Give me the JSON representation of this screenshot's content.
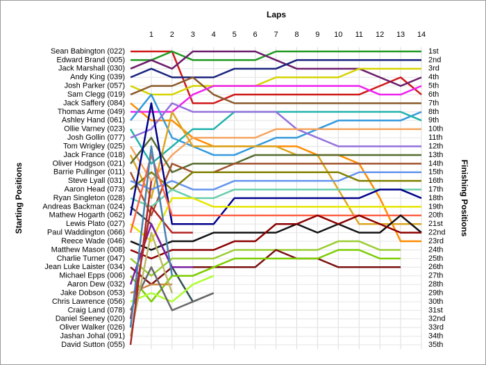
{
  "chart_data": {
    "type": "line",
    "xlabel": "Laps",
    "ylabel": "Starting Positions",
    "y2label": "Finishing Positions",
    "x": [
      0,
      1,
      2,
      3,
      4,
      5,
      6,
      7,
      8,
      9,
      10,
      11,
      12,
      13,
      14
    ],
    "xlim": [
      0,
      14
    ],
    "xticks": [
      1,
      2,
      3,
      4,
      5,
      6,
      7,
      8,
      9,
      10,
      11,
      12,
      13,
      14
    ],
    "ylim": [
      1,
      35
    ],
    "inverted": true,
    "grid": true,
    "y2ticks": [
      {
        "value": 1,
        "label": "1st"
      },
      {
        "value": 2,
        "label": "2nd"
      },
      {
        "value": 3,
        "label": "3rd"
      },
      {
        "value": 4,
        "label": "4th"
      },
      {
        "value": 5,
        "label": "5th"
      },
      {
        "value": 6,
        "label": "6th"
      },
      {
        "value": 7,
        "label": "7th"
      },
      {
        "value": 8,
        "label": "8th"
      },
      {
        "value": 9,
        "label": "9th"
      },
      {
        "value": 10,
        "label": "10th"
      },
      {
        "value": 11,
        "label": "11th"
      },
      {
        "value": 12,
        "label": "12th"
      },
      {
        "value": 13,
        "label": "13th"
      },
      {
        "value": 14,
        "label": "14th"
      },
      {
        "value": 15,
        "label": "15th"
      },
      {
        "value": 16,
        "label": "16th"
      },
      {
        "value": 17,
        "label": "17th"
      },
      {
        "value": 18,
        "label": "18th"
      },
      {
        "value": 19,
        "label": "19th"
      },
      {
        "value": 20,
        "label": "20th"
      },
      {
        "value": 21,
        "label": "21st"
      },
      {
        "value": 22,
        "label": "22nd"
      },
      {
        "value": 23,
        "label": "23rd"
      },
      {
        "value": 24,
        "label": "24th"
      },
      {
        "value": 25,
        "label": "25th"
      },
      {
        "value": 26,
        "label": "26th"
      },
      {
        "value": 27,
        "label": "27th"
      },
      {
        "value": 28,
        "label": "28th"
      },
      {
        "value": 29,
        "label": "29th"
      },
      {
        "value": 30,
        "label": "30th"
      },
      {
        "value": 31,
        "label": "31st"
      },
      {
        "value": 32,
        "label": "32nd"
      },
      {
        "value": 33,
        "label": "33rd"
      },
      {
        "value": 34,
        "label": "34th"
      },
      {
        "value": 35,
        "label": "35th"
      }
    ],
    "series": [
      {
        "name": "Sean Babington (022)",
        "color": "#d01818",
        "values": [
          1,
          1,
          1,
          7,
          7,
          6,
          6,
          6,
          6,
          6,
          6,
          6,
          5,
          4,
          6
        ]
      },
      {
        "name": "Edward Brand (005)",
        "color": "#229922",
        "values": [
          2,
          2,
          1,
          2,
          2,
          2,
          2,
          1,
          1,
          1,
          1,
          1,
          1,
          1,
          1
        ]
      },
      {
        "name": "Jack Marshall (030)",
        "color": "#6a1b6a",
        "values": [
          3,
          2,
          3,
          1,
          1,
          1,
          1,
          2,
          3,
          3,
          3,
          3,
          4,
          5,
          4
        ]
      },
      {
        "name": "Andy King (039)",
        "color": "#1a237e",
        "values": [
          4,
          3,
          4,
          4,
          4,
          3,
          3,
          3,
          2,
          2,
          2,
          2,
          2,
          2,
          2
        ]
      },
      {
        "name": "Josh Parker (057)",
        "color": "#d4d400",
        "values": [
          5,
          6,
          6,
          5,
          5,
          5,
          5,
          4,
          4,
          4,
          4,
          3,
          3,
          3,
          3
        ]
      },
      {
        "name": "Sam Clegg (019)",
        "color": "#8b5a2b",
        "values": [
          6,
          5,
          5,
          4,
          6,
          7,
          7,
          7,
          7,
          7,
          7,
          7,
          7,
          7,
          7
        ]
      },
      {
        "name": "Jack Saffery (084)",
        "color": "#ff8c00",
        "values": [
          7,
          9,
          9,
          11,
          12,
          12,
          12,
          12,
          12,
          13,
          13,
          14,
          18,
          23,
          23
        ]
      },
      {
        "name": "Thomas Arme (049)",
        "color": "#ee22ee",
        "values": [
          8,
          8,
          8,
          6,
          5,
          5,
          5,
          5,
          5,
          5,
          5,
          5,
          6,
          6,
          5
        ]
      },
      {
        "name": "Ashley Hand (061)",
        "color": "#3399dd",
        "values": [
          9,
          6,
          11,
          12,
          13,
          13,
          12,
          11,
          11,
          10,
          9,
          9,
          9,
          9,
          8
        ]
      },
      {
        "name": "Ollie Varney (023)",
        "color": "#20b2aa",
        "values": [
          10,
          14,
          12,
          10,
          10,
          8,
          8,
          8,
          8,
          8,
          8,
          8,
          8,
          8,
          9
        ]
      },
      {
        "name": "Josh Gollin (077)",
        "color": "#9370db",
        "values": [
          11,
          10,
          7,
          8,
          8,
          8,
          8,
          8,
          10,
          11,
          12,
          12,
          12,
          12,
          12
        ]
      },
      {
        "name": "Tom Wrigley (025)",
        "color": "#f4a460",
        "values": [
          12,
          16,
          13,
          11,
          11,
          11,
          11,
          10,
          10,
          10,
          10,
          10,
          10,
          10,
          10
        ]
      },
      {
        "name": "Jack France (018)",
        "color": "#daa520",
        "values": [
          13,
          18,
          8,
          12,
          12,
          12,
          12,
          12,
          13,
          13,
          17,
          21,
          21,
          21,
          21
        ]
      },
      {
        "name": "Oliver Hodgson (021)",
        "color": "#556b2f",
        "values": [
          14,
          11,
          15,
          14,
          14,
          14,
          13,
          13,
          13,
          13,
          13,
          13,
          13,
          13,
          13
        ]
      },
      {
        "name": "Barrie Pullinger (011)",
        "color": "#a0522d",
        "values": [
          15,
          20,
          14,
          15,
          15,
          14,
          14,
          14,
          14,
          14,
          14,
          14,
          14,
          14,
          14
        ]
      },
      {
        "name": "Steve Lyall (031)",
        "color": "#6495ed",
        "values": [
          16,
          17,
          16,
          17,
          17,
          16,
          16,
          16,
          16,
          16,
          16,
          15,
          15,
          15,
          15
        ]
      },
      {
        "name": "Aaron Head (073)",
        "color": "#808000",
        "values": [
          17,
          15,
          17,
          15,
          15,
          15,
          15,
          15,
          15,
          15,
          15,
          16,
          16,
          16,
          16
        ]
      },
      {
        "name": "Ryan Singleton (028)",
        "color": "#66cdaa",
        "values": [
          18,
          19,
          17,
          18,
          18,
          17,
          17,
          17,
          17,
          17,
          17,
          17,
          17,
          17,
          17
        ]
      },
      {
        "name": "Andreas Backman (024)",
        "color": "#2f4f4f",
        "values": [
          19,
          21,
          26,
          30,
          29,
          null,
          null,
          null,
          null,
          null,
          null,
          null,
          null,
          null,
          null
        ]
      },
      {
        "name": "Mathew Hogarth (062)",
        "color": "#00008b",
        "values": [
          20,
          7,
          21,
          21,
          21,
          18,
          18,
          18,
          18,
          18,
          18,
          18,
          17,
          17,
          18
        ]
      },
      {
        "name": "Lewis Plato (027)",
        "color": "#e6e600",
        "values": [
          21,
          23,
          18,
          18,
          19,
          19,
          19,
          19,
          19,
          19,
          19,
          19,
          19,
          19,
          19
        ]
      },
      {
        "name": "Paul Waddington (066)",
        "color": "#ff6347",
        "values": [
          22,
          13,
          20,
          20,
          20,
          20,
          20,
          20,
          20,
          20,
          20,
          20,
          20,
          20,
          20
        ]
      },
      {
        "name": "Reece Wade (046)",
        "color": "#111111",
        "values": [
          23,
          24,
          23,
          23,
          22,
          22,
          22,
          22,
          21,
          22,
          21,
          22,
          22,
          20,
          22
        ]
      },
      {
        "name": "Matthew Mason (008)",
        "color": "#8b0000",
        "values": [
          24,
          25,
          24,
          24,
          24,
          23,
          23,
          21,
          21,
          20,
          21,
          20,
          21,
          22,
          22
        ]
      },
      {
        "name": "Charlie Turner (047)",
        "color": "#9acd32",
        "values": [
          25,
          27,
          25,
          25,
          25,
          24,
          24,
          24,
          24,
          24,
          23,
          23,
          24,
          24,
          null
        ]
      },
      {
        "name": "Jean Luke Laister (034)",
        "color": "#7a1010",
        "values": [
          26,
          28,
          26,
          26,
          26,
          26,
          26,
          24,
          25,
          25,
          26,
          26,
          26,
          26,
          null
        ]
      },
      {
        "name": "Michael Epps (006)",
        "color": "#7ccd00",
        "values": [
          27,
          30,
          27,
          27,
          26,
          25,
          25,
          25,
          25,
          25,
          24,
          24,
          25,
          25,
          null
        ]
      },
      {
        "name": "Aaron Dew (032)",
        "color": "#7b1fa2",
        "values": [
          28,
          21,
          26,
          26,
          null,
          null,
          null,
          null,
          null,
          null,
          null,
          null,
          null,
          null,
          null
        ]
      },
      {
        "name": "Jake Dobson (053)",
        "color": "#cd853f",
        "values": [
          29,
          28,
          28,
          null,
          null,
          null,
          null,
          null,
          null,
          null,
          null,
          null,
          null,
          null,
          null
        ]
      },
      {
        "name": "Chris Lawrence (056)",
        "color": "#adff2f",
        "values": [
          30,
          29,
          30,
          28,
          27,
          null,
          null,
          null,
          null,
          null,
          null,
          null,
          null,
          null,
          null
        ]
      },
      {
        "name": "Craig Land (078)",
        "color": "#696969",
        "values": [
          31,
          26,
          31,
          30,
          29,
          null,
          null,
          null,
          null,
          null,
          null,
          null,
          null,
          null,
          null
        ]
      },
      {
        "name": "Daniel Seeney (020)",
        "color": "#b22222",
        "values": [
          32,
          19,
          22,
          22,
          null,
          null,
          null,
          null,
          null,
          null,
          null,
          null,
          null,
          null,
          null
        ]
      },
      {
        "name": "Oliver Walker (026)",
        "color": "#4682b4",
        "values": [
          33,
          12,
          27,
          null,
          null,
          null,
          null,
          null,
          null,
          null,
          null,
          null,
          null,
          null,
          null
        ]
      },
      {
        "name": "Jashan Johal (091)",
        "color": "#bdb76b",
        "values": [
          34,
          22,
          29,
          null,
          null,
          null,
          null,
          null,
          null,
          null,
          null,
          null,
          null,
          null,
          null
        ]
      },
      {
        "name": "David Sutton (055)",
        "color": "#a52a2a",
        "values": [
          35,
          16,
          null,
          null,
          null,
          null,
          null,
          null,
          null,
          null,
          null,
          null,
          null,
          null,
          null
        ]
      }
    ]
  }
}
